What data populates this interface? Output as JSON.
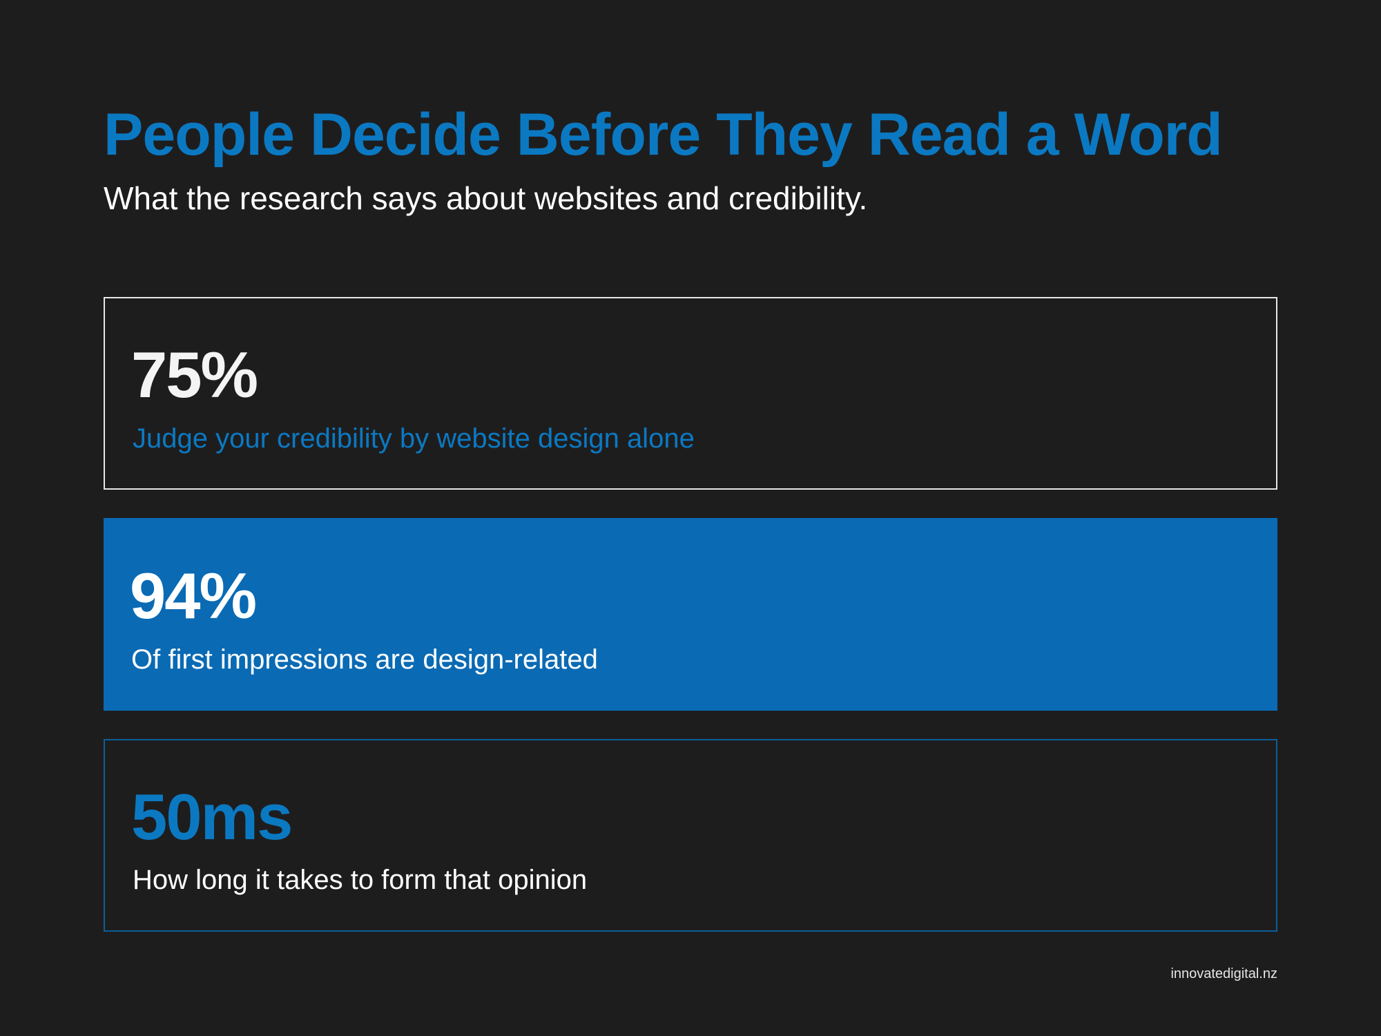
{
  "header": {
    "title": "People Decide Before They Read a Word",
    "subtitle": "What the research says about websites and credibility."
  },
  "stats": [
    {
      "value": "75%",
      "description": "Judge your credibility by website design alone"
    },
    {
      "value": "94%",
      "description": "Of first impressions are design-related"
    },
    {
      "value": "50ms",
      "description": "How long it takes to form that opinion"
    }
  ],
  "footer": {
    "website": "innovatedigital.nz"
  },
  "colors": {
    "background": "#1e1d1e",
    "accent_blue": "#0b79c2",
    "card_fill_blue": "#0a6ab4",
    "text_white": "#ffffff"
  }
}
